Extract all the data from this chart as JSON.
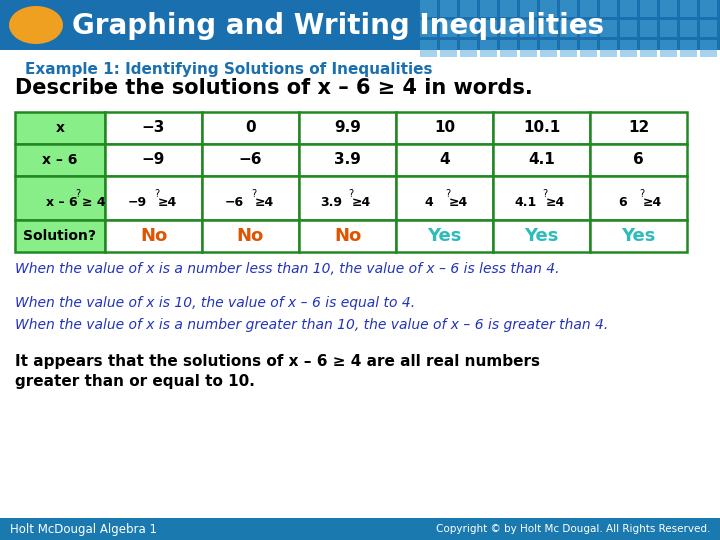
{
  "title": "Graphing and Writing Inequalities",
  "title_bg": "#1a6faf",
  "title_text_color": "#ffffff",
  "oval_color": "#f0a020",
  "example_title": "Example 1: Identifying Solutions of Inequalities",
  "example_title_color": "#1a6faf",
  "describe_text": "Describe the solutions of x – 6 ≥ 4 in words.",
  "describe_text_color": "#000000",
  "table": {
    "row1_label": "x",
    "row2_label": "x – 6",
    "row3_label": "x – 6 ≥ 4",
    "row1_values": [
      "−3",
      "0",
      "9.9",
      "10",
      "10.1",
      "12"
    ],
    "row2_values": [
      "−9",
      "−6",
      "3.9",
      "4",
      "4.1",
      "6"
    ],
    "row3_left": [
      "−9",
      "−6",
      "3.9",
      "4",
      "4.1",
      "6"
    ],
    "row3_right": [
      "4",
      "4",
      "4",
      "4",
      "4",
      "4"
    ],
    "solution_values": [
      "No",
      "No",
      "No",
      "Yes",
      "Yes",
      "Yes"
    ],
    "solution_no_color": "#dd5500",
    "solution_yes_color": "#30bbbb",
    "label_bg": "#88ee88",
    "solution_label": "Solution?",
    "border_color": "#228822",
    "cell_bg": "#ffffff"
  },
  "italic_lines": [
    [
      "When the value of ",
      "x",
      " is a number less than 10, the value of ",
      "x",
      " – 6 is less than 4."
    ],
    [
      "When the value of ",
      "x",
      " is 10, the value of ",
      "x",
      " – 6 is equal to 4."
    ],
    [
      "When the value of ",
      "x",
      " is a number greater than 10, the value of ",
      "x",
      " – 6 is greater than 4."
    ]
  ],
  "italic_lines_plain": [
    "When the value of x is a number less than 10, the value of x – 6 is less than 4.",
    "When the value of x is 10, the value of x – 6 is equal to 4.",
    "When the value of x is a number greater than 10, the value of x – 6 is greater than 4."
  ],
  "italic_color": "#2233bb",
  "normal_line1": "It appears that the solutions of x – 6 ≥ 4 are all real numbers",
  "normal_line2": "greater than or equal to 10.",
  "normal_color": "#000000",
  "footer_bg": "#1a7aaf",
  "footer_left": "Holt McDougal Algebra 1",
  "footer_right": "Copyright © by Holt Mc Dougal. All Rights Reserved.",
  "footer_text_color": "#ffffff",
  "bg_color": "#ffffff"
}
